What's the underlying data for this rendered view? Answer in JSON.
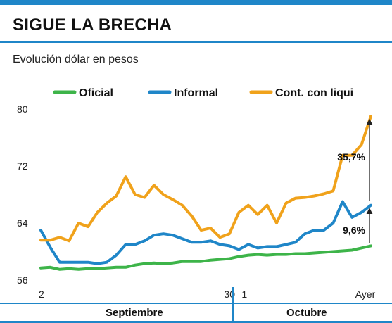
{
  "header": {
    "title": "SIGUE LA BRECHA",
    "subtitle": "Evolución dólar en pesos"
  },
  "months": [
    "Septiembre",
    "Octubre"
  ],
  "colors": {
    "oficial": "#3db449",
    "informal": "#1f86c8",
    "ccl": "#f0a21b",
    "accent": "#1f86c8"
  },
  "chart_data": {
    "type": "line",
    "title": "",
    "xlabel": "",
    "ylabel": "",
    "ylim": [
      56,
      80
    ],
    "y_ticks": [
      56,
      64,
      72,
      80
    ],
    "x_tick_labels": [
      {
        "label": "2",
        "index": 0
      },
      {
        "label": "30",
        "index": 20
      },
      {
        "label": "1",
        "index": 21
      },
      {
        "label": "Ayer",
        "index": 35
      }
    ],
    "legend_position": "top",
    "series": [
      {
        "name": "Oficial",
        "key": "oficial",
        "values": [
          57.7,
          57.8,
          57.5,
          57.6,
          57.5,
          57.6,
          57.6,
          57.7,
          57.8,
          57.8,
          58.1,
          58.3,
          58.4,
          58.3,
          58.4,
          58.6,
          58.6,
          58.6,
          58.8,
          58.9,
          59.0,
          59.3,
          59.5,
          59.6,
          59.5,
          59.6,
          59.6,
          59.7,
          59.7,
          59.8,
          59.9,
          60.0,
          60.1,
          60.2,
          60.5,
          60.8
        ]
      },
      {
        "name": "Informal",
        "key": "informal",
        "values": [
          63.0,
          60.6,
          58.5,
          58.5,
          58.5,
          58.5,
          58.3,
          58.5,
          59.5,
          61.0,
          61.0,
          61.5,
          62.3,
          62.5,
          62.3,
          61.8,
          61.3,
          61.3,
          61.5,
          61.0,
          60.8,
          60.3,
          61.0,
          60.5,
          60.7,
          60.7,
          61.0,
          61.3,
          62.5,
          63.0,
          63.0,
          64.0,
          67.0,
          64.8,
          65.5,
          66.5
        ]
      },
      {
        "name": "Cont. con liqui",
        "key": "ccl",
        "values": [
          61.6,
          61.6,
          62.0,
          61.5,
          64.0,
          63.5,
          65.5,
          66.8,
          67.8,
          70.5,
          68.0,
          67.6,
          69.3,
          68.0,
          67.3,
          66.5,
          65.0,
          63.0,
          63.3,
          62.0,
          62.5,
          65.5,
          66.5,
          65.2,
          66.5,
          64.0,
          66.8,
          67.5,
          67.6,
          67.8,
          68.1,
          68.5,
          73.5,
          73.5,
          75.0,
          79.0
        ]
      }
    ],
    "annotations": [
      {
        "label": "35,7%",
        "series": "ccl"
      },
      {
        "label": "9,6%",
        "series": "informal"
      }
    ]
  }
}
